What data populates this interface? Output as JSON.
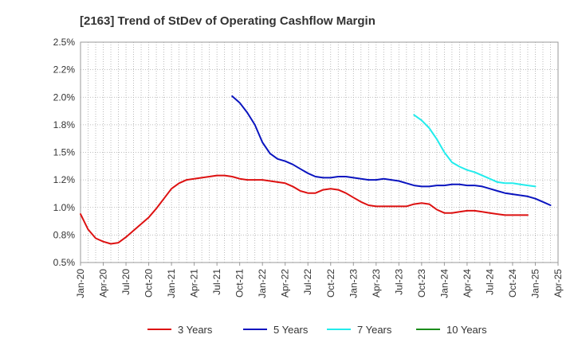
{
  "chart_data": {
    "type": "line",
    "title": "[2163]  Trend of StDev of Operating Cashflow Margin",
    "xlabel": "",
    "ylabel": "",
    "ylim": [
      0.5,
      2.5
    ],
    "y_ticks": [
      {
        "value": 0.5,
        "label": "0.5%"
      },
      {
        "value": 0.75,
        "label": "0.8%"
      },
      {
        "value": 1.0,
        "label": "1.0%"
      },
      {
        "value": 1.25,
        "label": "1.2%"
      },
      {
        "value": 1.5,
        "label": "1.5%"
      },
      {
        "value": 1.75,
        "label": "1.8%"
      },
      {
        "value": 2.0,
        "label": "2.0%"
      },
      {
        "value": 2.25,
        "label": "2.2%"
      },
      {
        "value": 2.5,
        "label": "2.5%"
      }
    ],
    "x_ticks": [
      "Jan-20",
      "Apr-20",
      "Jul-20",
      "Oct-20",
      "Jan-21",
      "Apr-21",
      "Jul-21",
      "Oct-21",
      "Jan-22",
      "Apr-22",
      "Jul-22",
      "Oct-22",
      "Jan-23",
      "Apr-23",
      "Jul-23",
      "Oct-23",
      "Jan-24",
      "Apr-24",
      "Jul-24",
      "Oct-24",
      "Jan-25",
      "Apr-25"
    ],
    "x_start": "Jan-20",
    "x_months": 63,
    "grid": true,
    "legend_position": "bottom",
    "series": [
      {
        "name": "3 Years",
        "color": "#dd1111",
        "start": "Jan-20",
        "values": [
          0.94,
          0.8,
          0.72,
          0.69,
          0.67,
          0.68,
          0.73,
          0.79,
          0.85,
          0.91,
          0.99,
          1.08,
          1.17,
          1.22,
          1.25,
          1.26,
          1.27,
          1.28,
          1.29,
          1.29,
          1.28,
          1.26,
          1.25,
          1.25,
          1.25,
          1.24,
          1.23,
          1.22,
          1.19,
          1.15,
          1.13,
          1.13,
          1.16,
          1.17,
          1.16,
          1.13,
          1.09,
          1.05,
          1.02,
          1.01,
          1.01,
          1.01,
          1.01,
          1.01,
          1.03,
          1.04,
          1.03,
          0.98,
          0.95,
          0.95,
          0.96,
          0.97,
          0.97,
          0.96,
          0.95,
          0.94,
          0.93,
          0.93,
          0.93,
          0.93
        ]
      },
      {
        "name": "5 Years",
        "color": "#0a14bf",
        "start": "Sep-21",
        "values": [
          2.01,
          1.95,
          1.86,
          1.75,
          1.59,
          1.49,
          1.44,
          1.42,
          1.39,
          1.35,
          1.31,
          1.28,
          1.27,
          1.27,
          1.28,
          1.28,
          1.27,
          1.26,
          1.25,
          1.25,
          1.26,
          1.25,
          1.24,
          1.22,
          1.2,
          1.19,
          1.19,
          1.2,
          1.2,
          1.21,
          1.21,
          1.2,
          1.2,
          1.19,
          1.17,
          1.15,
          1.13,
          1.12,
          1.11,
          1.1,
          1.08,
          1.05,
          1.02
        ]
      },
      {
        "name": "7 Years",
        "color": "#22ecec",
        "start": "Sep-23",
        "values": [
          1.84,
          1.79,
          1.72,
          1.62,
          1.5,
          1.41,
          1.37,
          1.34,
          1.32,
          1.29,
          1.26,
          1.23,
          1.22,
          1.22,
          1.21,
          1.2,
          1.19
        ]
      },
      {
        "name": "10 Years",
        "color": "#1a8c1a",
        "start": "Jan-25",
        "values": []
      }
    ]
  }
}
